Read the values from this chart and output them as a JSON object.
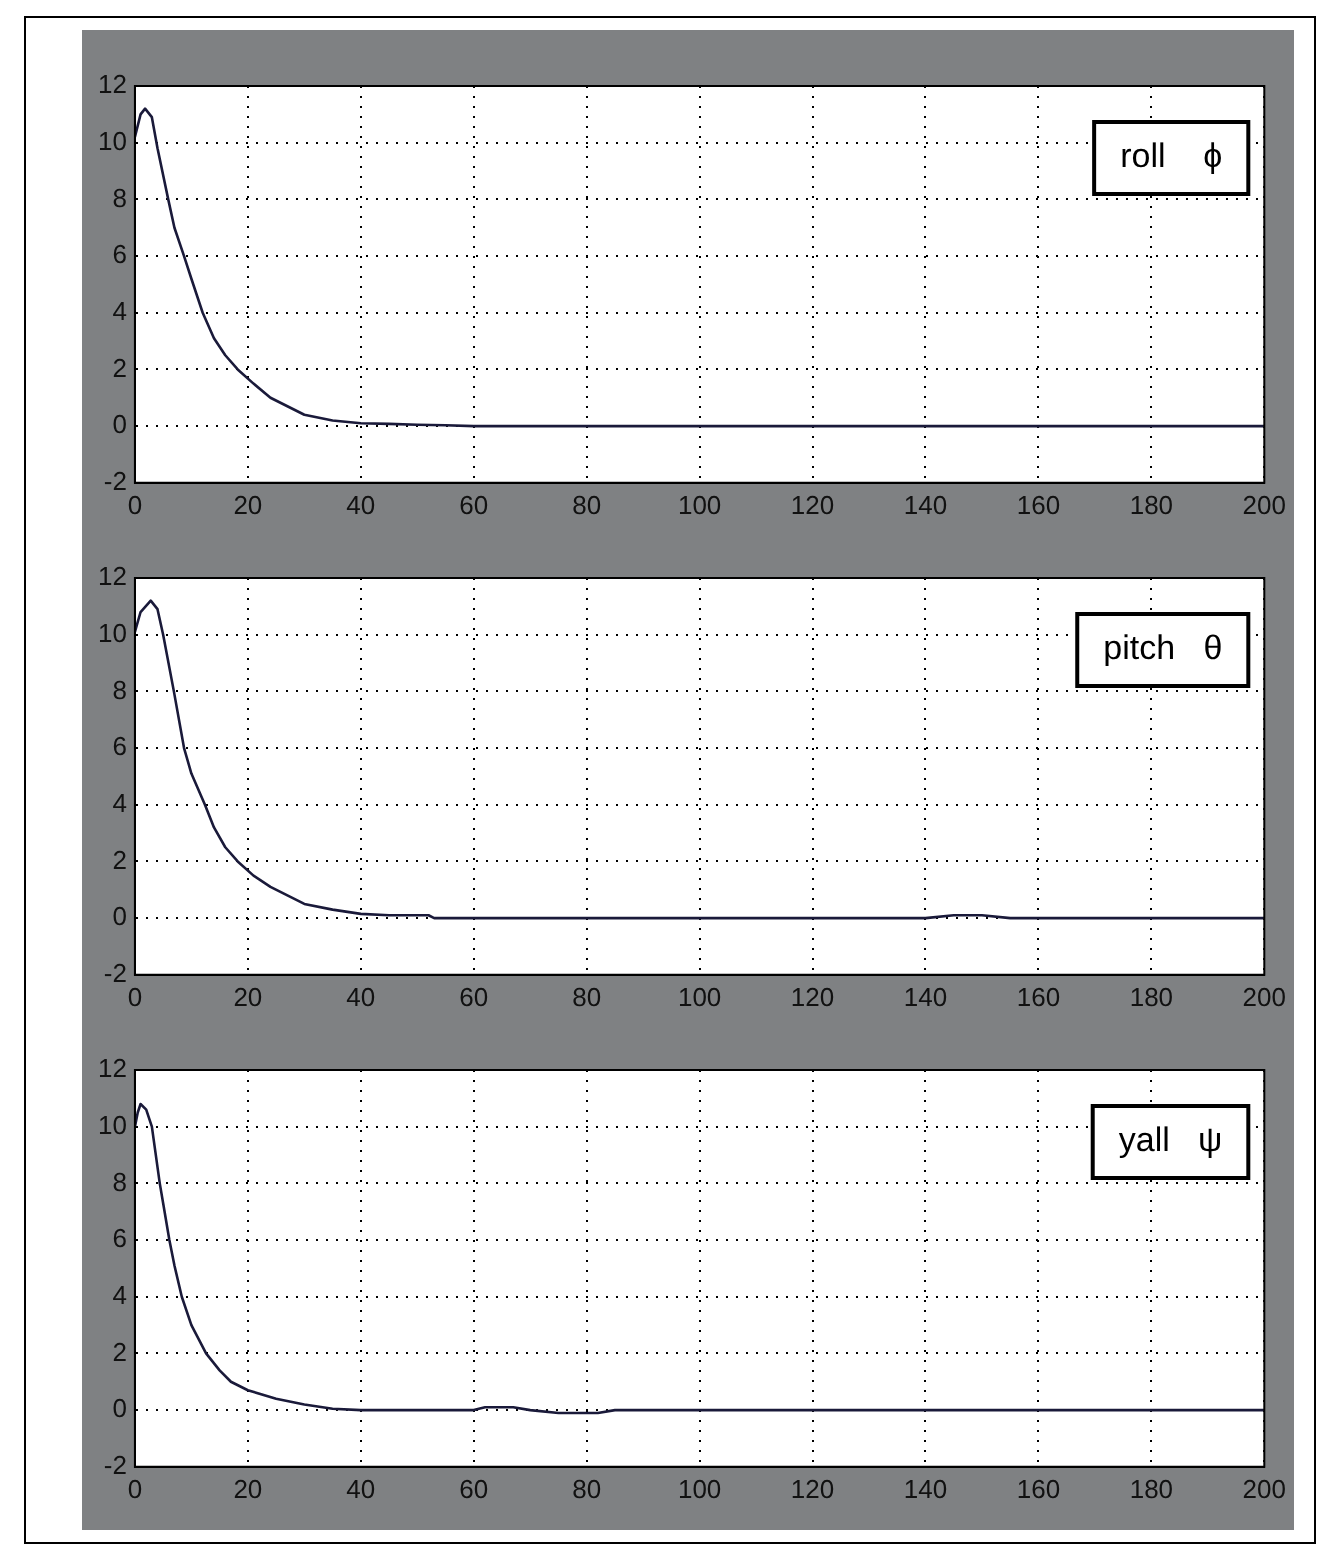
{
  "chart_data": [
    {
      "type": "line",
      "annotations": [
        "roll    ϕ"
      ],
      "xlim": [
        0,
        200
      ],
      "ylim": [
        -2,
        12
      ],
      "xticks": [
        0,
        20,
        40,
        60,
        80,
        100,
        120,
        140,
        160,
        180,
        200
      ],
      "yticks": [
        -2,
        0,
        2,
        4,
        6,
        8,
        10,
        12
      ],
      "grid": true,
      "series": [
        {
          "color": "#1a1a3a",
          "x": [
            0,
            1,
            1.8,
            3,
            4,
            5.9,
            7,
            8.7,
            10,
            12,
            14,
            16,
            18.2,
            21,
            24,
            27,
            30,
            35,
            40,
            45,
            50,
            55,
            60,
            80,
            100,
            120,
            140,
            160,
            180,
            200
          ],
          "values": [
            10.2,
            11,
            11.2,
            10.9,
            9.8,
            8,
            7,
            6,
            5.2,
            4,
            3.1,
            2.5,
            2,
            1.5,
            1,
            0.7,
            0.4,
            0.2,
            0.1,
            0.08,
            0.05,
            0.03,
            0,
            0,
            0,
            0,
            0,
            0,
            0,
            0
          ]
        }
      ]
    },
    {
      "type": "line",
      "annotations": [
        "pitch   θ"
      ],
      "xlim": [
        0,
        200
      ],
      "ylim": [
        -2,
        12
      ],
      "xticks": [
        0,
        20,
        40,
        60,
        80,
        100,
        120,
        140,
        160,
        180,
        200
      ],
      "yticks": [
        -2,
        0,
        2,
        4,
        6,
        8,
        10,
        12
      ],
      "grid": true,
      "series": [
        {
          "color": "#1a1a3a",
          "x": [
            0,
            1,
            2.8,
            4,
            5,
            6.9,
            8.7,
            10,
            12.4,
            14,
            16,
            18.2,
            21,
            24,
            27,
            30,
            35,
            40,
            45,
            52,
            53,
            80,
            100,
            120,
            140,
            145,
            150,
            155,
            160,
            180,
            200
          ],
          "values": [
            10.1,
            10.8,
            11.2,
            10.9,
            10,
            8,
            6,
            5.1,
            4,
            3.2,
            2.5,
            2,
            1.5,
            1.1,
            0.8,
            0.5,
            0.3,
            0.15,
            0.1,
            0.1,
            0,
            0,
            0,
            0,
            0,
            0.1,
            0.1,
            0,
            0,
            0,
            0
          ]
        }
      ]
    },
    {
      "type": "line",
      "annotations": [
        "yall   ψ"
      ],
      "xlim": [
        0,
        200
      ],
      "ylim": [
        -2,
        12
      ],
      "xticks": [
        0,
        20,
        40,
        60,
        80,
        100,
        120,
        140,
        160,
        180,
        200
      ],
      "yticks": [
        -2,
        0,
        2,
        4,
        6,
        8,
        10,
        12
      ],
      "grid": true,
      "series": [
        {
          "color": "#1a1a3a",
          "x": [
            0,
            0.5,
            1,
            2,
            3,
            4.4,
            5,
            6.1,
            7,
            8.3,
            10,
            12.6,
            15,
            17,
            20,
            25,
            30,
            35,
            40,
            60,
            62,
            67,
            70,
            75,
            82,
            85,
            100,
            120,
            140,
            160,
            180,
            200
          ],
          "values": [
            10,
            10.5,
            10.8,
            10.6,
            10,
            8,
            7.3,
            6,
            5.1,
            4,
            3,
            2,
            1.4,
            1,
            0.7,
            0.4,
            0.2,
            0.05,
            0,
            0,
            0.1,
            0.1,
            0,
            -0.1,
            -0.1,
            0,
            0,
            0,
            0,
            0,
            0,
            0
          ]
        }
      ]
    }
  ]
}
